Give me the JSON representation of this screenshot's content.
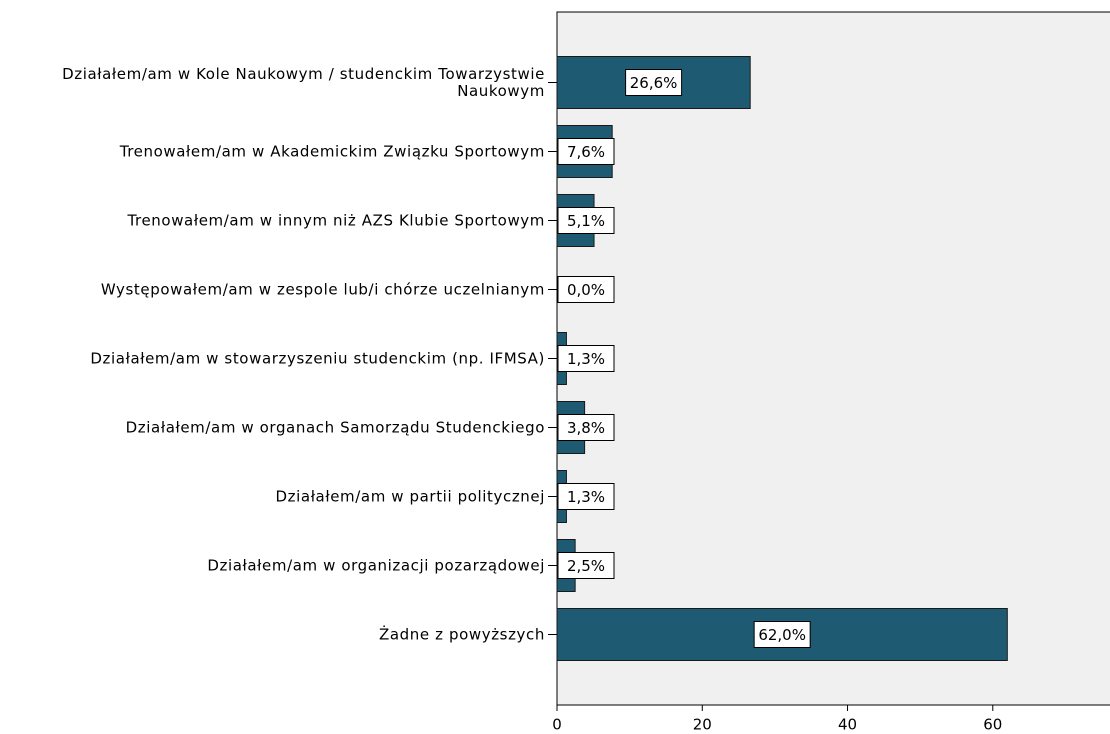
{
  "chart_data": {
    "type": "bar",
    "orientation": "horizontal",
    "categories": [
      "Działałem/am w Kole Naukowym / studenckim Towarzystwie Naukowym",
      "Trenowałem/am w Akademickim Związku Sportowym",
      "Trenowałem/am w innym niż AZS Klubie Sportowym",
      "Występowałem/am w zespole lub/i chórze uczelnianym",
      "Działałem/am w stowarzyszeniu studenckim (np. IFMSA)",
      "Działałem/am w organach Samorządu Studenckiego",
      "Działałem/am w partii politycznej",
      "Działałem/am w organizacji pozarządowej",
      "Żadne z powyższych"
    ],
    "values": [
      26.6,
      7.6,
      5.1,
      0.0,
      1.3,
      3.8,
      1.3,
      2.5,
      62.0
    ],
    "value_labels": [
      "26,6%",
      "7,6%",
      "5,1%",
      "0,0%",
      "1,3%",
      "3,8%",
      "1,3%",
      "2,5%",
      "62,0%"
    ],
    "color": "#1f5a73",
    "xlim": [
      0,
      76
    ],
    "xticks": [
      0,
      20,
      40,
      60
    ],
    "grid": false
  }
}
